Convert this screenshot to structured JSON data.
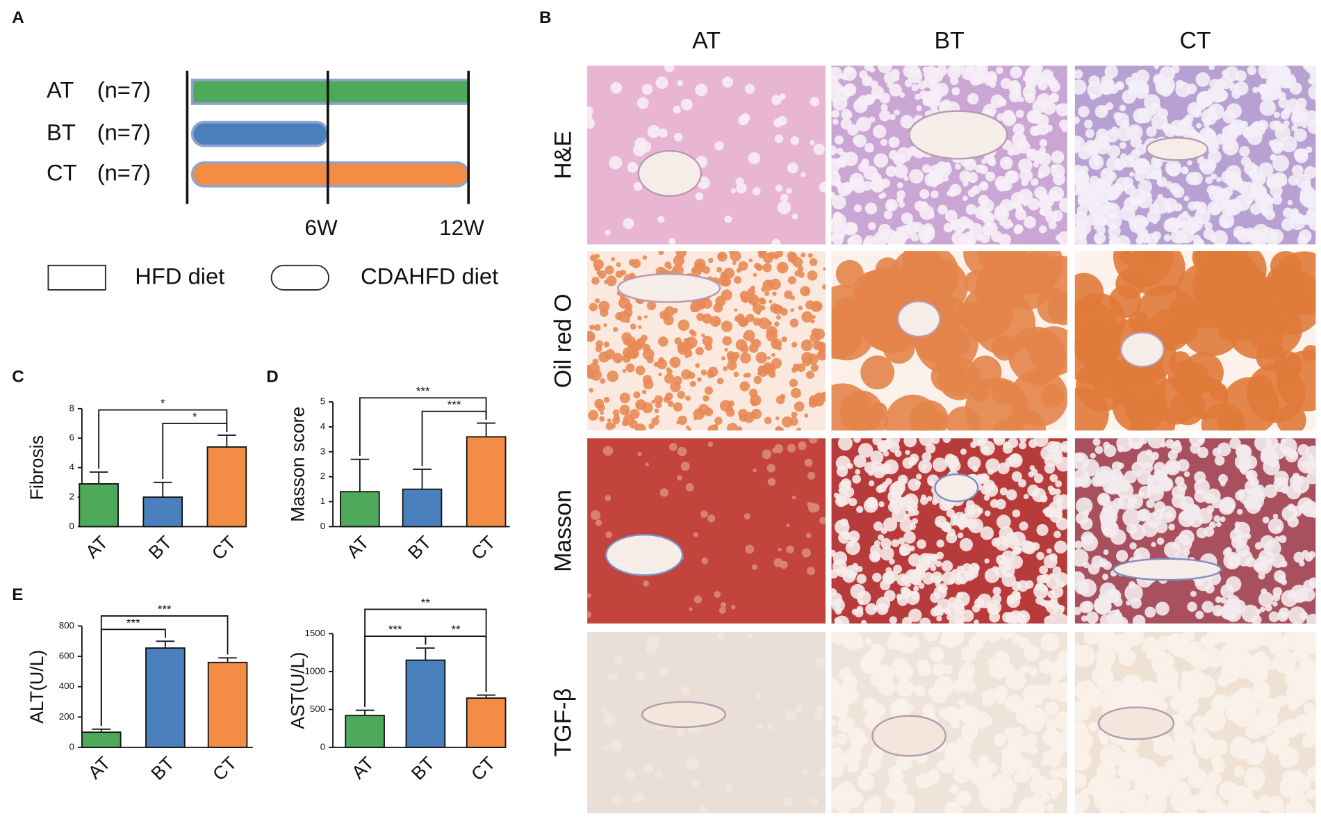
{
  "panels": [
    "A",
    "B",
    "C",
    "D",
    "E"
  ],
  "timeline": {
    "xlim": [
      0,
      12
    ],
    "xticks": [
      {
        "value": 6,
        "label": "6W"
      },
      {
        "value": 12,
        "label": "12W"
      }
    ],
    "rows": [
      {
        "group": "AT",
        "n": "(n=7)",
        "start": 0,
        "end": 12,
        "diet": "HFD diet",
        "color": "#4fa95a"
      },
      {
        "group": "BT",
        "n": "(n=7)",
        "start": 0,
        "end": 6,
        "diet": "CDAHFD diet",
        "color": "#4a80be"
      },
      {
        "group": "CT",
        "n": "(n=7)",
        "start": 0,
        "end": 12,
        "diet": "CDAHFD diet",
        "color": "#f38d45"
      }
    ],
    "legend": [
      "HFD diet",
      "CDAHFD diet"
    ]
  },
  "histology": {
    "columns": [
      "AT",
      "BT",
      "CT"
    ],
    "rows": [
      "H&E",
      "Oil red O",
      "Masson",
      "TGF-β"
    ]
  },
  "chart_data": [
    {
      "type": "bar",
      "y_label": "Fibrosis",
      "categories": [
        "AT",
        "BT",
        "CT"
      ],
      "values": [
        2.9,
        2.0,
        5.4
      ],
      "errors": [
        0.8,
        1.0,
        0.8
      ],
      "colors": [
        "#4fa95a",
        "#4a80be",
        "#f38d45"
      ],
      "ylim": [
        0,
        8
      ],
      "yticks": [
        0,
        2,
        4,
        6,
        8
      ],
      "comparisons": [
        {
          "pair": [
            "BT",
            "CT"
          ],
          "label": "*"
        },
        {
          "pair": [
            "AT",
            "CT"
          ],
          "label": "*"
        }
      ]
    },
    {
      "type": "bar",
      "y_label": "Masson score",
      "categories": [
        "AT",
        "BT",
        "CT"
      ],
      "values": [
        1.4,
        1.5,
        3.6
      ],
      "errors": [
        1.3,
        0.8,
        0.55
      ],
      "colors": [
        "#4fa95a",
        "#4a80be",
        "#f38d45"
      ],
      "ylim": [
        0,
        5
      ],
      "yticks": [
        0,
        1,
        2,
        3,
        4,
        5
      ],
      "comparisons": [
        {
          "pair": [
            "BT",
            "CT"
          ],
          "label": "***"
        },
        {
          "pair": [
            "AT",
            "CT"
          ],
          "label": "***"
        }
      ]
    },
    {
      "type": "bar",
      "y_label": "ALT(U/L)",
      "categories": [
        "AT",
        "BT",
        "CT"
      ],
      "values": [
        100,
        655,
        560
      ],
      "errors": [
        20,
        45,
        30
      ],
      "colors": [
        "#4fa95a",
        "#4a80be",
        "#f38d45"
      ],
      "ylim": [
        0,
        800
      ],
      "yticks": [
        0,
        200,
        400,
        600,
        800
      ],
      "comparisons": [
        {
          "pair": [
            "AT",
            "BT"
          ],
          "label": "***"
        },
        {
          "pair": [
            "AT",
            "CT"
          ],
          "label": "***"
        }
      ]
    },
    {
      "type": "bar",
      "y_label": "AST(U/L)",
      "categories": [
        "AT",
        "BT",
        "CT"
      ],
      "values": [
        420,
        1150,
        650
      ],
      "errors": [
        70,
        160,
        40
      ],
      "colors": [
        "#4fa95a",
        "#4a80be",
        "#f38d45"
      ],
      "ylim": [
        0,
        1500
      ],
      "yticks": [
        0,
        500,
        1000,
        1500
      ],
      "comparisons": [
        {
          "pair": [
            "AT",
            "BT"
          ],
          "label": "***"
        },
        {
          "pair": [
            "BT",
            "CT"
          ],
          "label": "**"
        },
        {
          "pair": [
            "AT",
            "CT"
          ],
          "label": "**"
        }
      ]
    }
  ]
}
